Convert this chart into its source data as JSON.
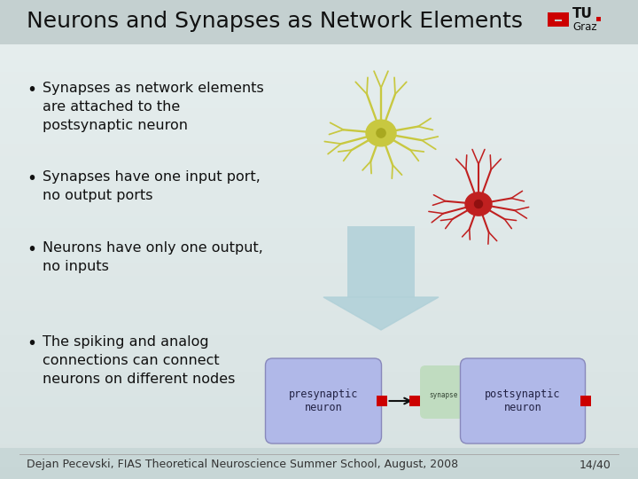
{
  "title": "Neurons and Synapses as Network Elements",
  "title_fontsize": 18,
  "title_color": "#111111",
  "bg_color_top": "#c8d4d4",
  "bg_color_bottom": "#e8f0f0",
  "bullet_points": [
    "Synapses as network elements\nare attached to the\npostsynaptic neuron",
    "Synapses have one input port,\nno output ports",
    "Neurons have only one output,\nno inputs",
    "The spiking and analog\nconnections can connect\nneurons on different nodes"
  ],
  "bullet_fontsize": 11.5,
  "bullet_color": "#111111",
  "footer_text": "Dejan Pecevski, FIAS Theoretical Neuroscience Summer School, August, 2008",
  "footer_page": "14/40",
  "footer_fontsize": 9,
  "footer_color": "#333333",
  "presynaptic_label": "presynaptic\nneuron",
  "postsynaptic_label": "postsynaptic\nneuron",
  "synapse_label": "synapse",
  "box_color_pre": "#b0b8e8",
  "box_color_post": "#b0b8e8",
  "box_color_synapse": "#c0dcc0",
  "red_port_color": "#cc0000",
  "arrow_color": "#111111",
  "arrow_color_big": "#b0d0d8",
  "tu_graz_red": "#cc0000",
  "neuron_yellow": "#c8c840",
  "neuron_yellow_body": "#a8a820",
  "neuron_red": "#c02020",
  "neuron_red_body": "#901010"
}
